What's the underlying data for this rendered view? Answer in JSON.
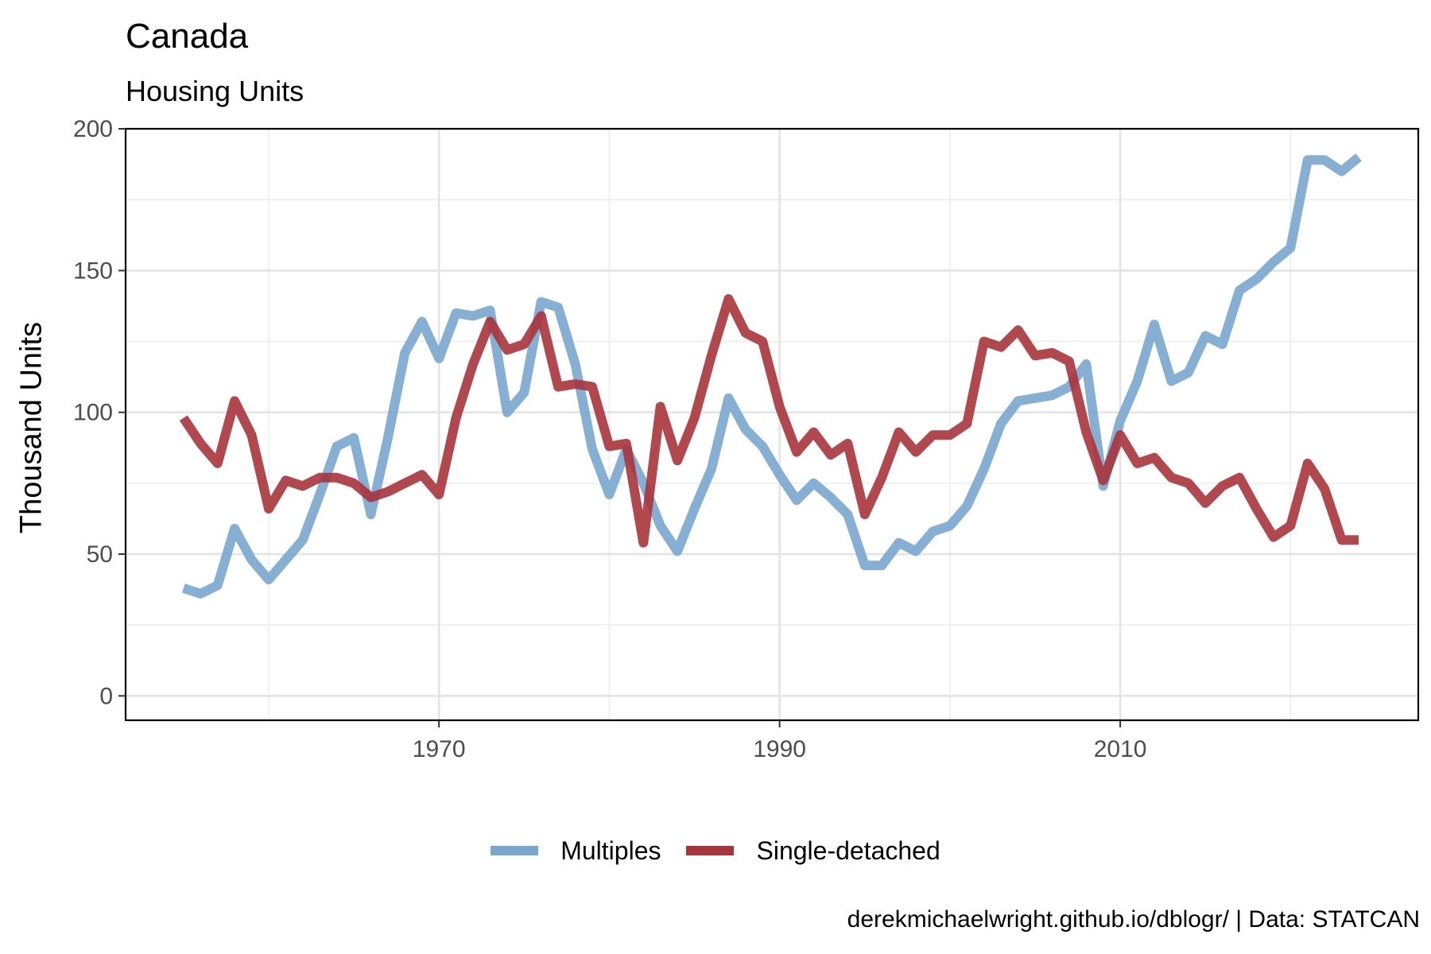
{
  "chart_data": {
    "type": "line",
    "title": "Canada",
    "subtitle": "Housing Units",
    "xlabel": "",
    "ylabel": "Thousand Units",
    "xlim": [
      1955,
      2024
    ],
    "ylim": [
      0,
      200
    ],
    "x_ticks": [
      1970,
      1990,
      2010
    ],
    "y_ticks": [
      0,
      50,
      100,
      150,
      200
    ],
    "grid": true,
    "legend_position": "bottom",
    "caption": "derekmichaelwright.github.io/dblogr/ | Data: STATCAN",
    "x": [
      1955,
      1956,
      1957,
      1958,
      1959,
      1960,
      1961,
      1962,
      1963,
      1964,
      1965,
      1966,
      1967,
      1968,
      1969,
      1970,
      1971,
      1972,
      1973,
      1974,
      1975,
      1976,
      1977,
      1978,
      1979,
      1980,
      1981,
      1982,
      1983,
      1984,
      1985,
      1986,
      1987,
      1988,
      1989,
      1990,
      1991,
      1992,
      1993,
      1994,
      1995,
      1996,
      1997,
      1998,
      1999,
      2000,
      2001,
      2002,
      2003,
      2004,
      2005,
      2006,
      2007,
      2008,
      2009,
      2010,
      2011,
      2012,
      2013,
      2014,
      2015,
      2016,
      2017,
      2018,
      2019,
      2020,
      2021,
      2022,
      2023,
      2024
    ],
    "series": [
      {
        "name": "Multiples",
        "color": "#79A6CF",
        "values": [
          38,
          36,
          39,
          59,
          48,
          41,
          48,
          55,
          71,
          88,
          91,
          64,
          91,
          121,
          132,
          119,
          135,
          134,
          136,
          100,
          107,
          139,
          137,
          117,
          87,
          71,
          87,
          75,
          60,
          51,
          66,
          80,
          105,
          94,
          88,
          78,
          69,
          75,
          70,
          64,
          46,
          46,
          54,
          51,
          58,
          60,
          67,
          80,
          96,
          104,
          105,
          106,
          109,
          117,
          74,
          97,
          111,
          131,
          111,
          114,
          127,
          124,
          143,
          147,
          153,
          158,
          189,
          189,
          185,
          190
        ]
      },
      {
        "name": "Single-detached",
        "color": "#A8343B",
        "values": [
          98,
          89,
          82,
          104,
          92,
          66,
          76,
          74,
          77,
          77,
          75,
          70,
          72,
          75,
          78,
          71,
          98,
          117,
          132,
          122,
          124,
          134,
          109,
          110,
          109,
          88,
          89,
          54,
          102,
          83,
          98,
          120,
          140,
          128,
          125,
          102,
          86,
          93,
          85,
          89,
          64,
          77,
          93,
          86,
          92,
          92,
          96,
          125,
          123,
          129,
          120,
          121,
          118,
          93,
          76,
          92,
          82,
          84,
          77,
          75,
          68,
          74,
          77,
          66,
          56,
          60,
          82,
          73,
          55,
          55
        ]
      }
    ]
  }
}
